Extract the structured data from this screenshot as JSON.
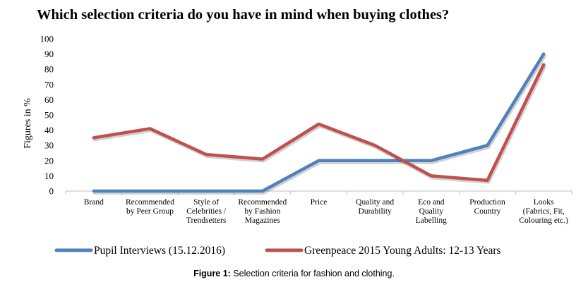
{
  "chart_data": {
    "type": "line",
    "title": "Which selection criteria do you have in mind when buying clothes?",
    "ylabel": "Figures in %",
    "xlabel": "",
    "ylim": [
      0,
      100
    ],
    "yticks": [
      0,
      10,
      20,
      30,
      40,
      50,
      60,
      70,
      80,
      90,
      100
    ],
    "grid": false,
    "legend_position": "bottom",
    "categories": [
      [
        "Brand"
      ],
      [
        "Recommended",
        "by Peer Group"
      ],
      [
        "Style of",
        "Celebrities /",
        "Trendsetters"
      ],
      [
        "Recommended",
        "by Fashion",
        "Magazines"
      ],
      [
        "Price"
      ],
      [
        "Quality and",
        "Durability"
      ],
      [
        "Eco and",
        "Quality",
        "Labelling"
      ],
      [
        "Production",
        "Country"
      ],
      [
        "Looks",
        "(Fabrics, Fit,",
        "Colouring etc.)"
      ]
    ],
    "series": [
      {
        "name": "Pupil Interviews (15.12.2016)",
        "color": "#4f81bd",
        "values": [
          0,
          0,
          0,
          0,
          20,
          20,
          20,
          30,
          90
        ]
      },
      {
        "name": "Greenpeace 2015 Young Adults: 12-13 Years",
        "color": "#c0504d",
        "values": [
          35,
          41,
          24,
          21,
          44,
          30,
          10,
          7,
          83
        ]
      }
    ]
  },
  "caption": {
    "label": "Figure 1:",
    "text": " Selection criteria for fashion and clothing."
  }
}
